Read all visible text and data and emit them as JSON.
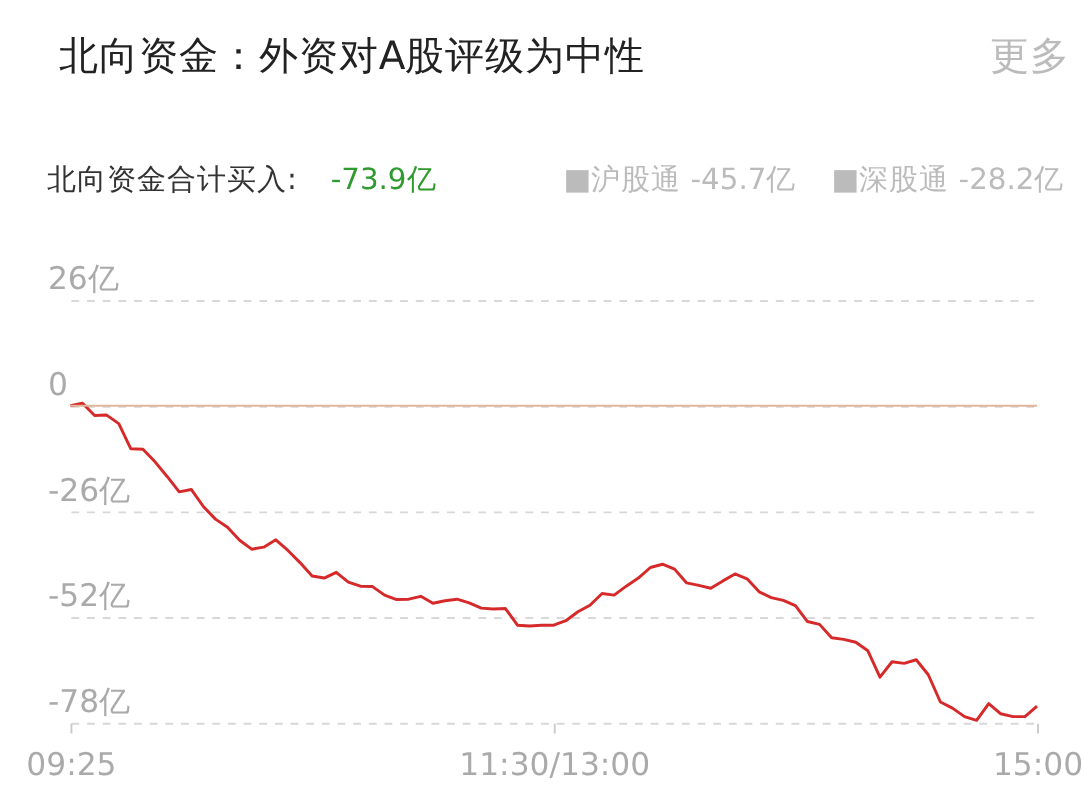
{
  "chart_data": {
    "type": "line",
    "title": "北向资金：外资对A股评级为中性",
    "subtitle": "北向资金合计买入:",
    "annotations": [
      "-73.9亿",
      "■沪股通 -45.7亿",
      "■深股通 -28.2亿",
      "更多"
    ],
    "categories": [
      "09:25",
      null,
      null,
      null,
      null,
      null,
      null,
      null,
      null,
      null,
      null,
      null,
      null,
      null,
      null,
      null,
      null,
      null,
      null,
      null,
      null,
      null,
      null,
      null,
      null,
      null,
      null,
      null,
      null,
      null,
      null,
      null,
      null,
      null,
      null,
      null,
      null,
      null,
      null,
      null,
      "11:30/13:00",
      null,
      null,
      null,
      null,
      null,
      null,
      null,
      null,
      null,
      null,
      null,
      null,
      null,
      null,
      null,
      null,
      null,
      null,
      null,
      null,
      null,
      null,
      null,
      null,
      null,
      null,
      null,
      null,
      null,
      null,
      null,
      null,
      null,
      null,
      null,
      null,
      null,
      null,
      null,
      "15:00"
    ],
    "series": [
      {
        "color": "#d62a2a",
        "values": [
          0,
          0.6,
          -2.4,
          -2.3,
          -4.4,
          -10.6,
          -10.7,
          -13.8,
          -17.4,
          -21.2,
          -20.6,
          -24.8,
          -27.9,
          -29.9,
          -33.1,
          -35.3,
          -34.8,
          -33.0,
          -35.6,
          -38.6,
          -41.9,
          -42.4,
          -41.0,
          -43.4,
          -44.4,
          -44.5,
          -46.6,
          -47.7,
          -47.6,
          -46.9,
          -48.6,
          -48.0,
          -47.6,
          -48.5,
          -49.8,
          -50.0,
          -49.9,
          -54.0,
          -54.2,
          -54.0,
          -54.0,
          -52.9,
          -50.7,
          -49.1,
          -46.2,
          -46.6,
          -44.4,
          -42.4,
          -39.8,
          -39.0,
          -40.2,
          -43.6,
          -44.2,
          -44.9,
          -43.1,
          -41.4,
          -42.6,
          -45.8,
          -47.2,
          -47.9,
          -49.2,
          -53.1,
          -53.8,
          -57.1,
          -57.5,
          -58.2,
          -60.3,
          -66.8,
          -63.0,
          -63.4,
          -62.5,
          -66.2,
          -72.9,
          -74.4,
          -76.5,
          -77.4,
          -73.3,
          -75.8,
          -76.5,
          -76.5,
          -73.9
        ]
      }
    ],
    "ylim": [
      -78,
      26
    ],
    "yticks": [
      {
        "value": 26,
        "label": "26亿"
      },
      {
        "value": 0,
        "label": "0"
      },
      {
        "value": -26,
        "label": "-26亿"
      },
      {
        "value": -52,
        "label": "-52亿"
      },
      {
        "value": -78,
        "label": "-78亿"
      }
    ],
    "grid": "y",
    "ref_lines": [
      {
        "axis": "y",
        "value": 0,
        "color": "#e2b59c"
      }
    ]
  }
}
